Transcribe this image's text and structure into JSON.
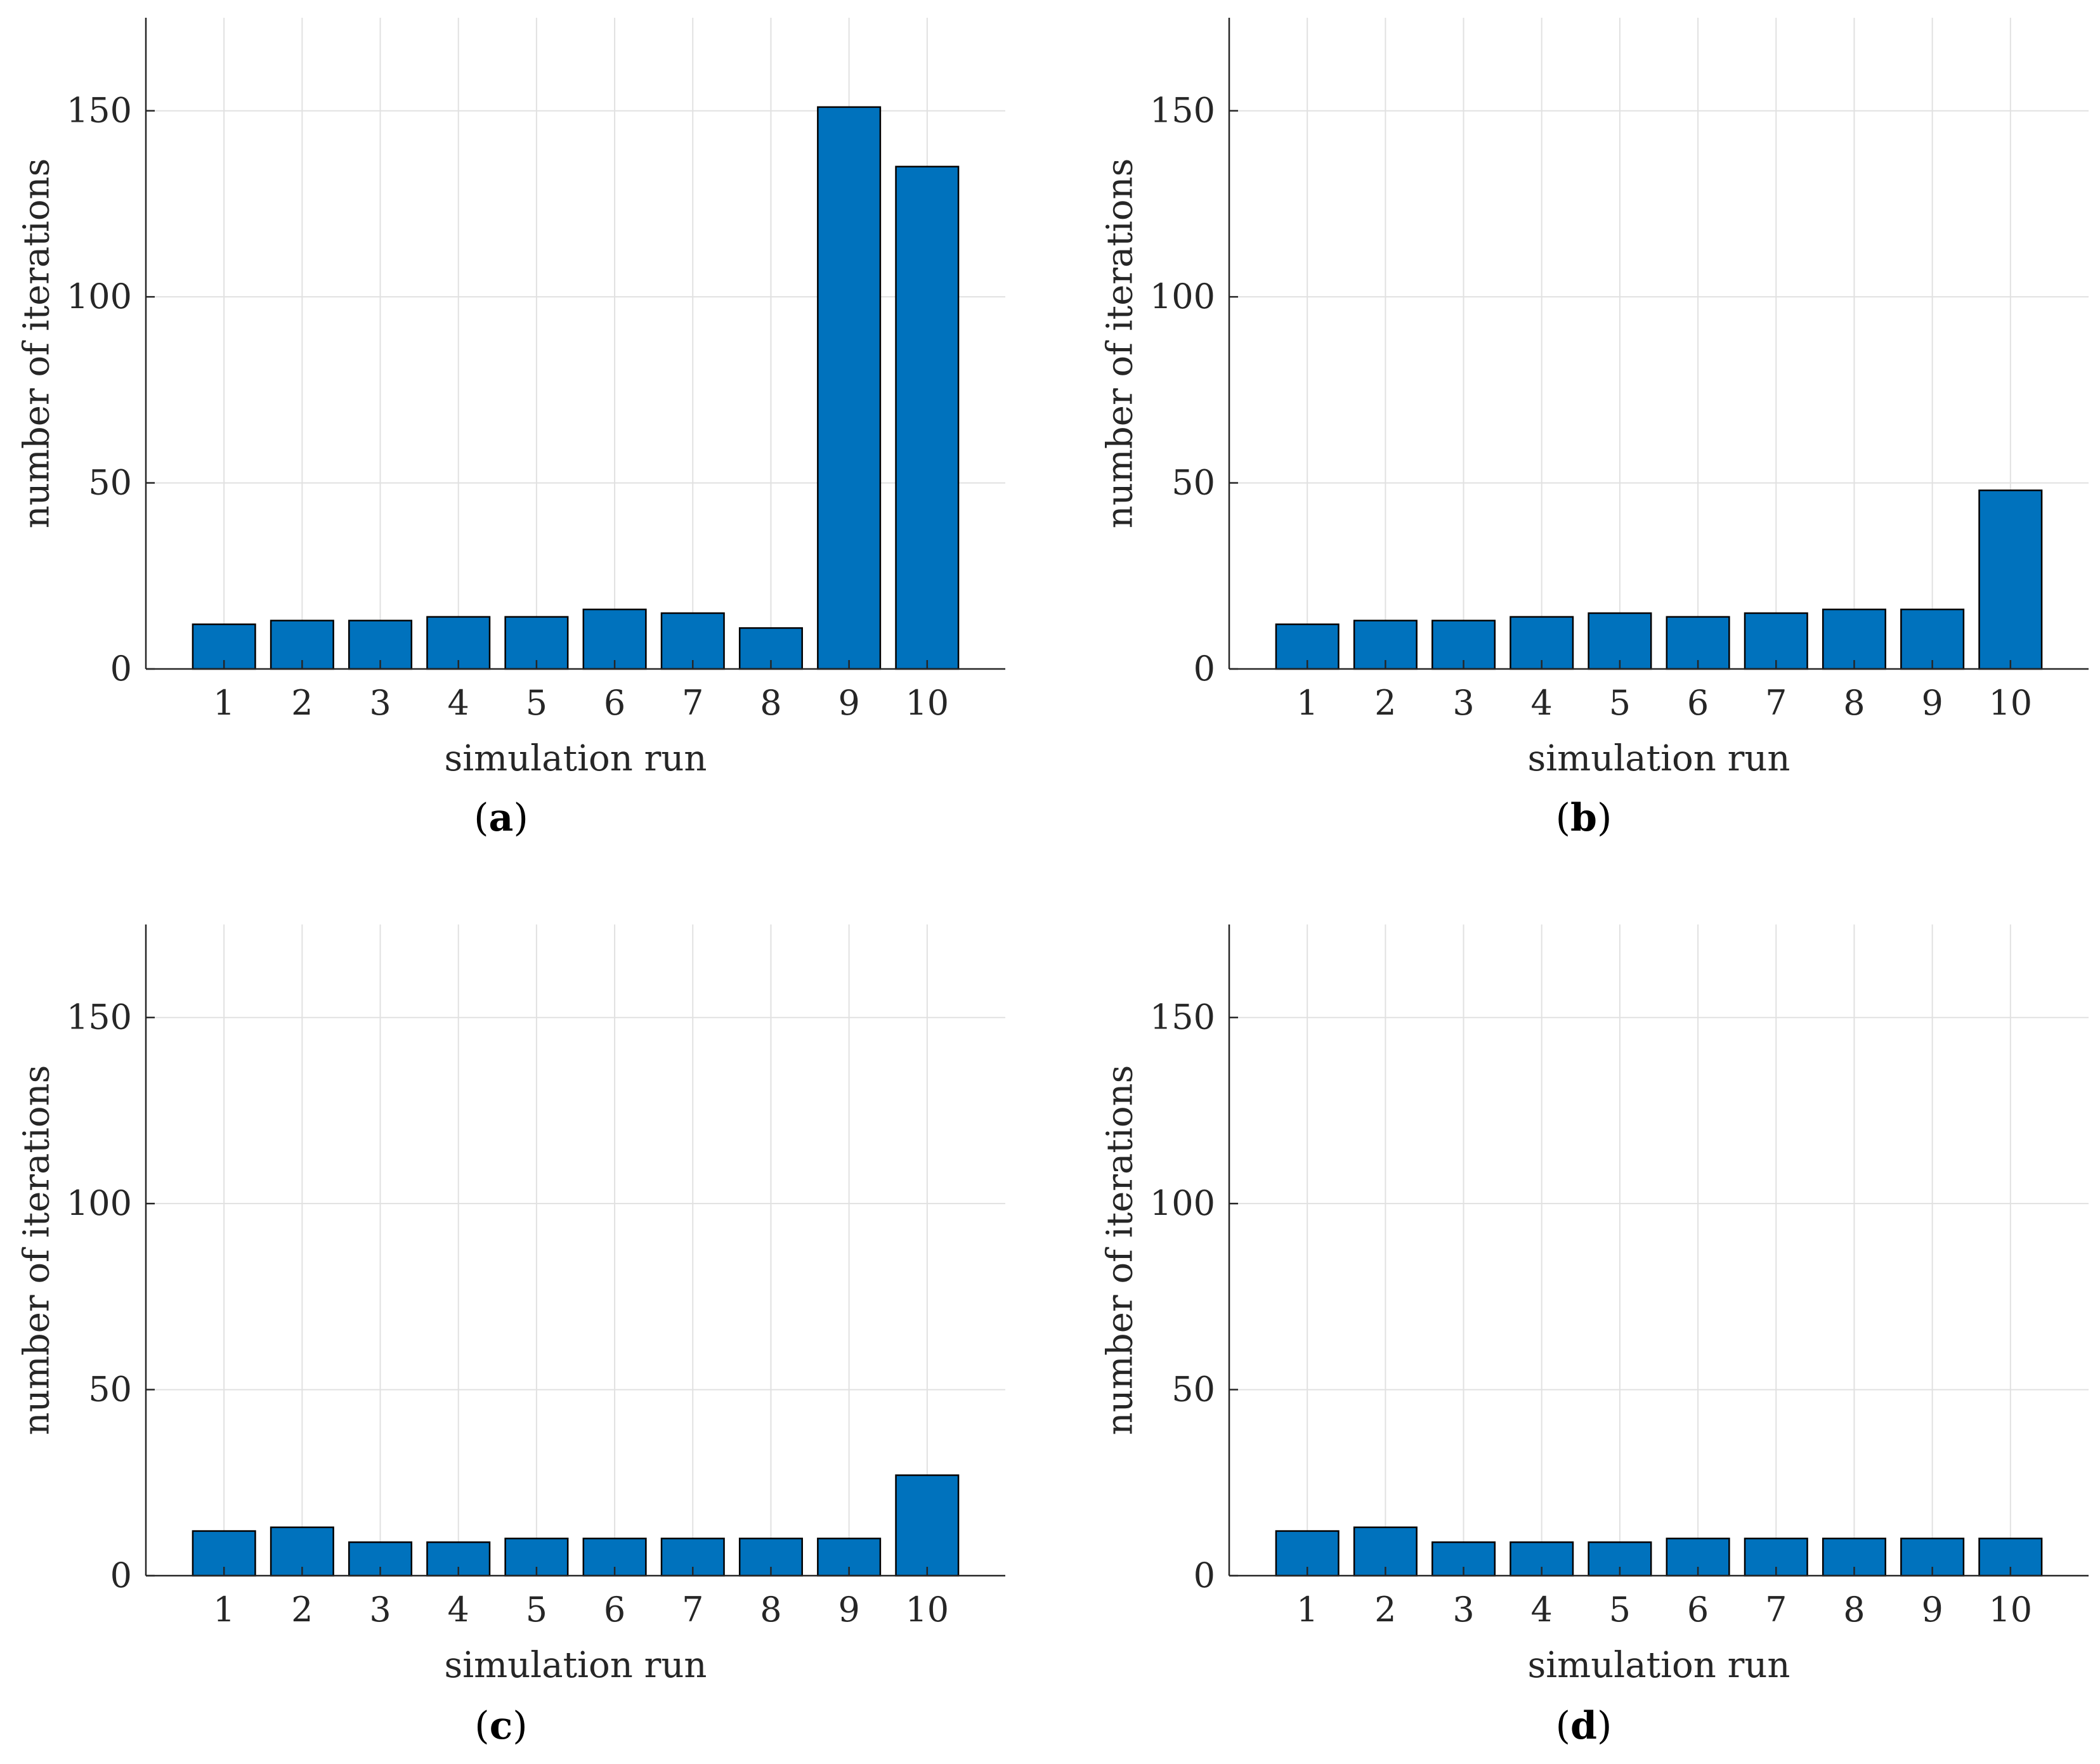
{
  "colors": {
    "bar": "#0072BD",
    "grid": "#e1e1e1",
    "axis": "#262626"
  },
  "chart_data": [
    {
      "type": "bar",
      "panel": "a",
      "categories": [
        "1",
        "2",
        "3",
        "4",
        "5",
        "6",
        "7",
        "8",
        "9",
        "10"
      ],
      "values": [
        12,
        13,
        13,
        14,
        14,
        16,
        15,
        11,
        151,
        135
      ],
      "xlabel": "simulation run",
      "ylabel": "number of iterations",
      "ylim": [
        0,
        175
      ],
      "yticks": [
        "0",
        "50",
        "100",
        "150"
      ],
      "grid": true
    },
    {
      "type": "bar",
      "panel": "b",
      "categories": [
        "1",
        "2",
        "3",
        "4",
        "5",
        "6",
        "7",
        "8",
        "9",
        "10"
      ],
      "values": [
        12,
        13,
        13,
        14,
        15,
        14,
        15,
        16,
        16,
        48
      ],
      "xlabel": "simulation run",
      "ylabel": "number of iterations",
      "ylim": [
        0,
        175
      ],
      "yticks": [
        "0",
        "50",
        "100",
        "150"
      ],
      "grid": true
    },
    {
      "type": "bar",
      "panel": "c",
      "categories": [
        "1",
        "2",
        "3",
        "4",
        "5",
        "6",
        "7",
        "8",
        "9",
        "10"
      ],
      "values": [
        12,
        13,
        9,
        9,
        10,
        10,
        10,
        10,
        10,
        27
      ],
      "xlabel": "simulation run",
      "ylabel": "number of iterations",
      "ylim": [
        0,
        175
      ],
      "yticks": [
        "0",
        "50",
        "100",
        "150"
      ],
      "grid": true
    },
    {
      "type": "bar",
      "panel": "d",
      "categories": [
        "1",
        "2",
        "3",
        "4",
        "5",
        "6",
        "7",
        "8",
        "9",
        "10"
      ],
      "values": [
        12,
        13,
        9,
        9,
        9,
        10,
        10,
        10,
        10,
        10
      ],
      "xlabel": "simulation run",
      "ylabel": "number of iterations",
      "ylim": [
        0,
        175
      ],
      "yticks": [
        "0",
        "50",
        "100",
        "150"
      ],
      "grid": true
    }
  ]
}
